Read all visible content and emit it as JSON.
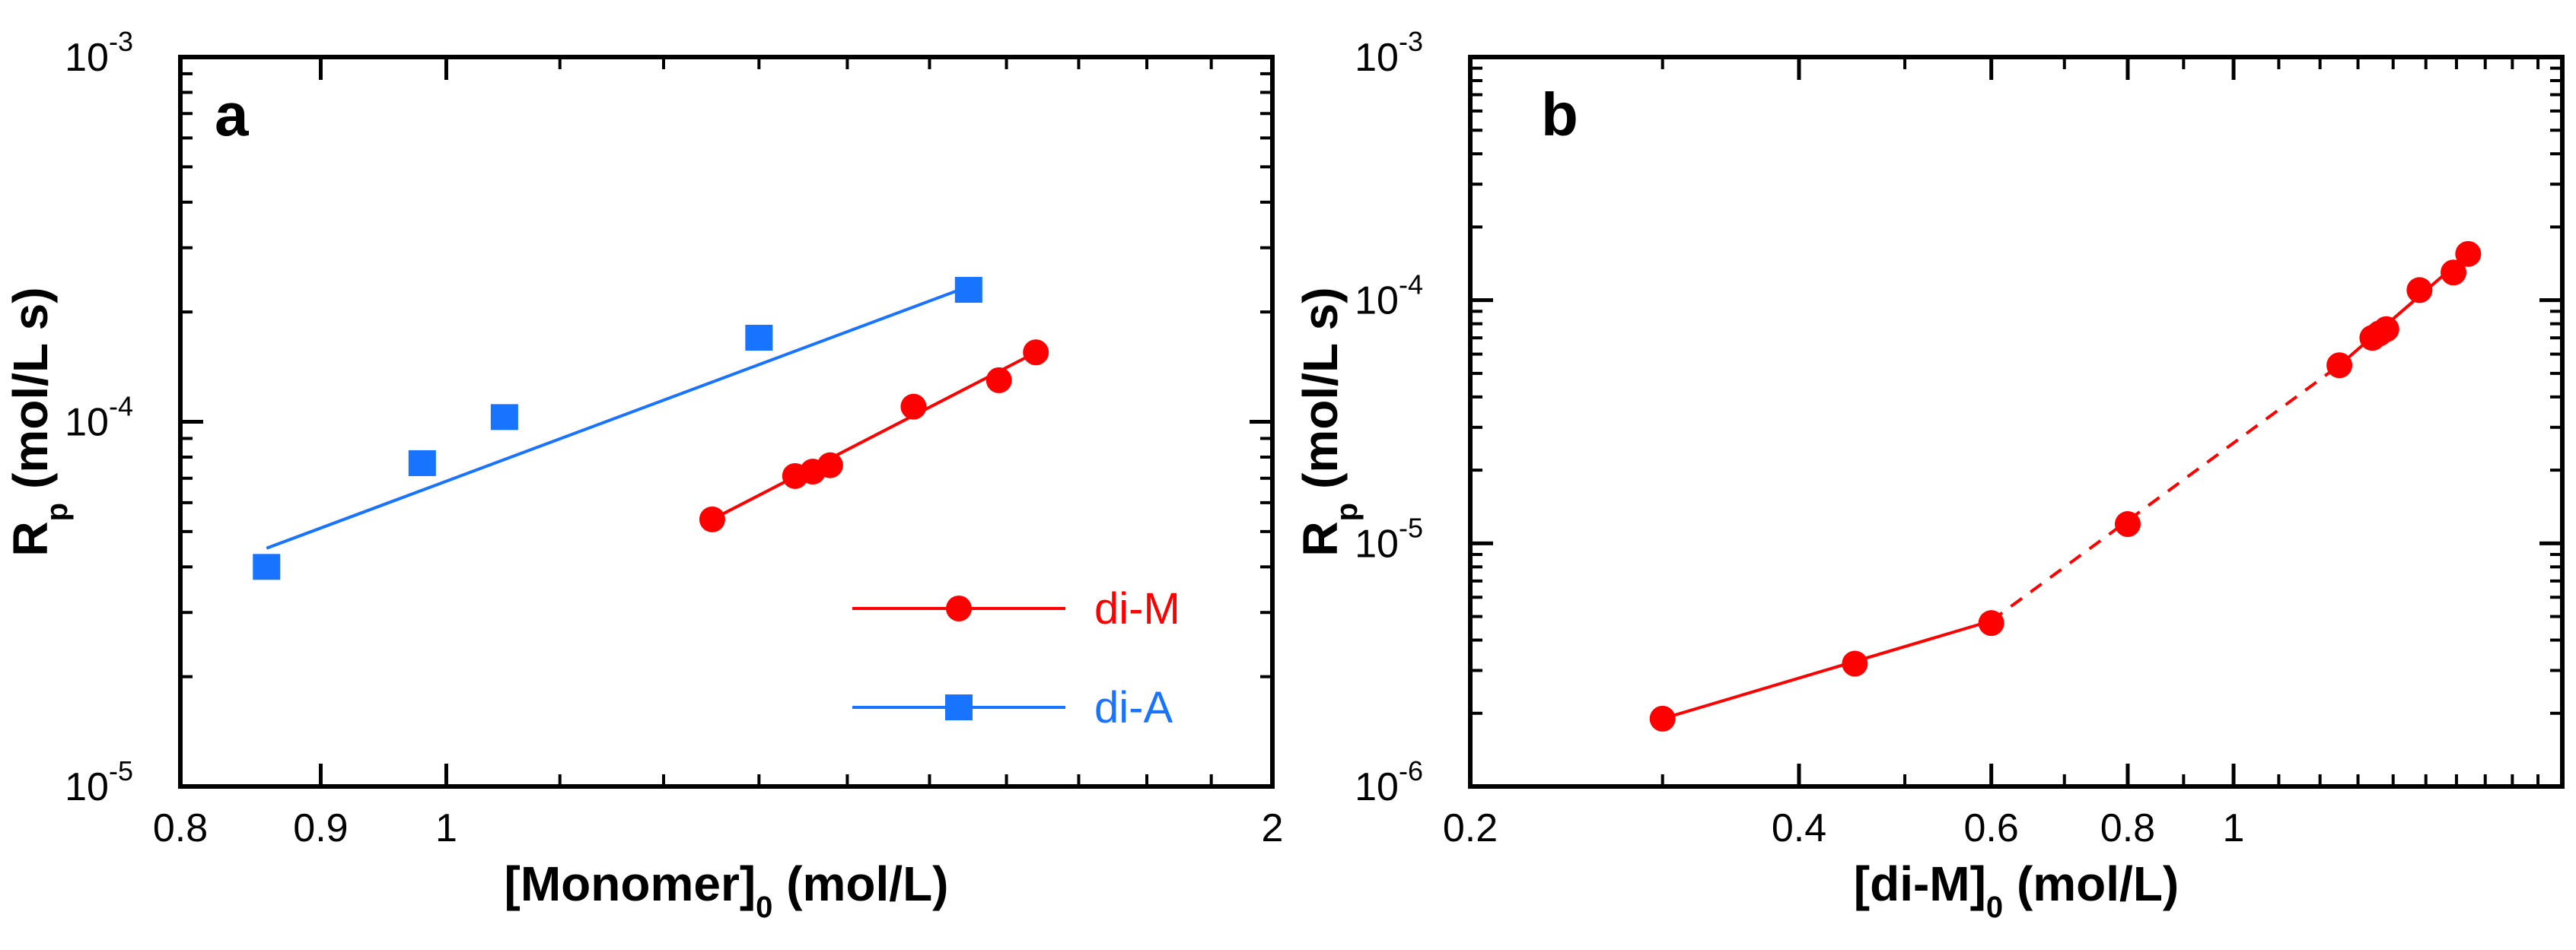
{
  "chart_data": [
    {
      "panel": "a",
      "type": "scatter",
      "xscale": "log",
      "yscale": "log",
      "xlim": [
        0.8,
        2
      ],
      "ylim": [
        1e-05,
        0.001
      ],
      "xlabel": "[Monomer]",
      "xlabel_sub": "0",
      "xlabel_unit": " (mol/L)",
      "ylabel": "R",
      "ylabel_sub": "p",
      "ylabel_unit": "(mol/L s)",
      "x_ticklabels": [
        "0.8",
        "0.9",
        "1",
        "2"
      ],
      "y_ticklabels": [
        {
          "base": "10",
          "exp": "-5"
        },
        {
          "base": "10",
          "exp": "-4"
        },
        {
          "base": "10",
          "exp": "-3"
        }
      ],
      "legend_position": "bottom-right",
      "series": [
        {
          "name": "di-M",
          "color": "#ff0000",
          "marker": "circle",
          "x": [
            1.25,
            1.34,
            1.36,
            1.38,
            1.48,
            1.59,
            1.64
          ],
          "y": [
            5.4e-05,
            7.1e-05,
            7.3e-05,
            7.6e-05,
            0.00011,
            0.00013,
            0.000155
          ],
          "fit": {
            "x": [
              1.25,
              1.64
            ],
            "y": [
              5.4e-05,
              0.000155
            ],
            "style": "solid"
          }
        },
        {
          "name": "di-A",
          "color": "#1874ff",
          "marker": "square",
          "x": [
            0.86,
            0.98,
            1.05,
            1.3,
            1.55
          ],
          "y": [
            4e-05,
            7.7e-05,
            0.000103,
            0.00017,
            0.00023
          ],
          "fit": {
            "x": [
              0.86,
              1.55
            ],
            "y": [
              4.5e-05,
              0.000235
            ],
            "style": "solid"
          }
        }
      ]
    },
    {
      "panel": "b",
      "type": "scatter",
      "xscale": "log",
      "yscale": "log",
      "xlim": [
        0.2,
        2
      ],
      "ylim": [
        1e-06,
        0.001
      ],
      "xlabel": "[di-M]",
      "xlabel_sub": "0",
      "xlabel_unit": " (mol/L)",
      "ylabel": "R",
      "ylabel_sub": "p",
      "ylabel_unit": "(mol/L s)",
      "x_ticklabels": [
        "0.2",
        "0.4",
        "0.6",
        "0.8",
        "1"
      ],
      "y_ticklabels": [
        {
          "base": "10",
          "exp": "-6"
        },
        {
          "base": "10",
          "exp": "-5"
        },
        {
          "base": "10",
          "exp": "-4"
        },
        {
          "base": "10",
          "exp": "-3"
        }
      ],
      "series": [
        {
          "name": "di-M",
          "color": "#ff0000",
          "marker": "circle",
          "x": [
            0.3,
            0.45,
            0.6,
            0.8,
            1.25,
            1.34,
            1.36,
            1.38,
            1.48,
            1.59,
            1.64
          ],
          "y": [
            1.9e-06,
            3.2e-06,
            4.7e-06,
            1.2e-05,
            5.4e-05,
            7e-05,
            7.3e-05,
            7.6e-05,
            0.00011,
            0.00013,
            0.000155
          ],
          "fits": [
            {
              "x": [
                0.3,
                0.6
              ],
              "y": [
                1.9e-06,
                4.8e-06
              ],
              "style": "solid"
            },
            {
              "x": [
                0.6,
                1.25
              ],
              "y": [
                4.8e-06,
                5.4e-05
              ],
              "style": "dashed"
            },
            {
              "x": [
                1.25,
                1.64
              ],
              "y": [
                5.4e-05,
                0.000155
              ],
              "style": "solid"
            }
          ]
        }
      ]
    }
  ]
}
